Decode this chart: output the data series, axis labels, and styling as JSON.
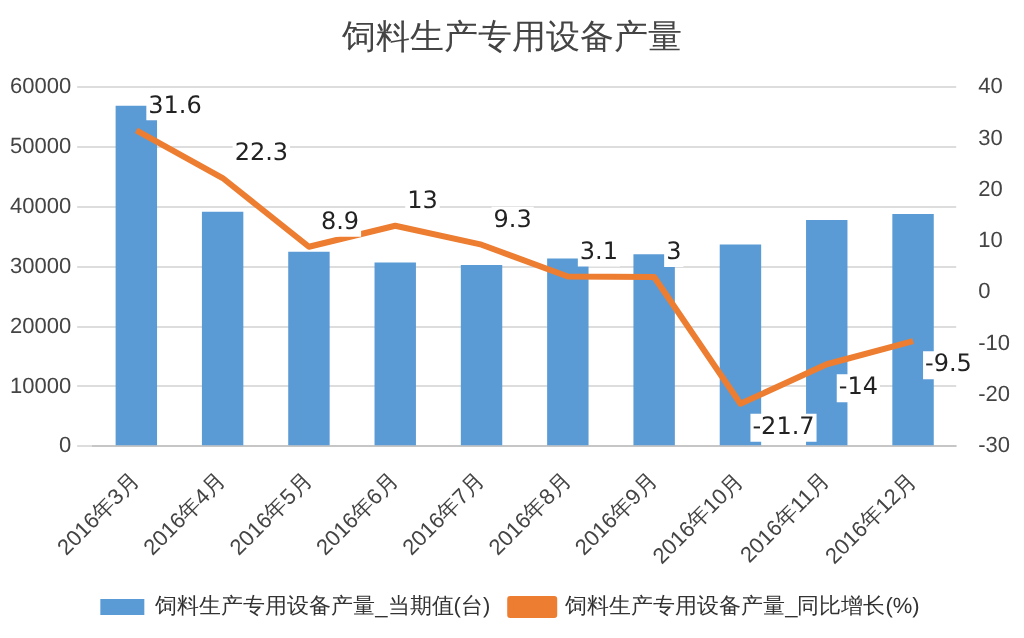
{
  "chart_data": {
    "type": "bar",
    "title": "饲料生产专用设备产量",
    "categories": [
      "2016年3月",
      "2016年4月",
      "2016年5月",
      "2016年6月",
      "2016年7月",
      "2016年8月",
      "2016年9月",
      "2016年10月",
      "2016年11月",
      "2016年12月"
    ],
    "series": [
      {
        "name": "饲料生产专用设备产量_当期值(台)",
        "color": "#5b9bd5",
        "values": [
          56900,
          39200,
          32500,
          30700,
          30300,
          31400,
          32100,
          33700,
          37800,
          38800
        ]
      },
      {
        "name": "饲料生产专用设备产量_同比增长(%)",
        "color": "#ed7d31",
        "type": "line",
        "axis": "y2",
        "data_labels": true,
        "values": [
          31.6,
          22.3,
          8.9,
          13,
          9.3,
          3.1,
          3,
          -21.7,
          -14,
          -9.5
        ]
      }
    ],
    "ylim": [
      0,
      60000
    ],
    "yticks": [
      0,
      10000,
      20000,
      30000,
      40000,
      50000,
      60000
    ],
    "y2lim": [
      -30,
      40
    ],
    "y2ticks": [
      -30,
      -20,
      -10,
      0,
      10,
      20,
      30,
      40
    ],
    "grid": "y",
    "legend": "bottom",
    "marker": "none"
  }
}
